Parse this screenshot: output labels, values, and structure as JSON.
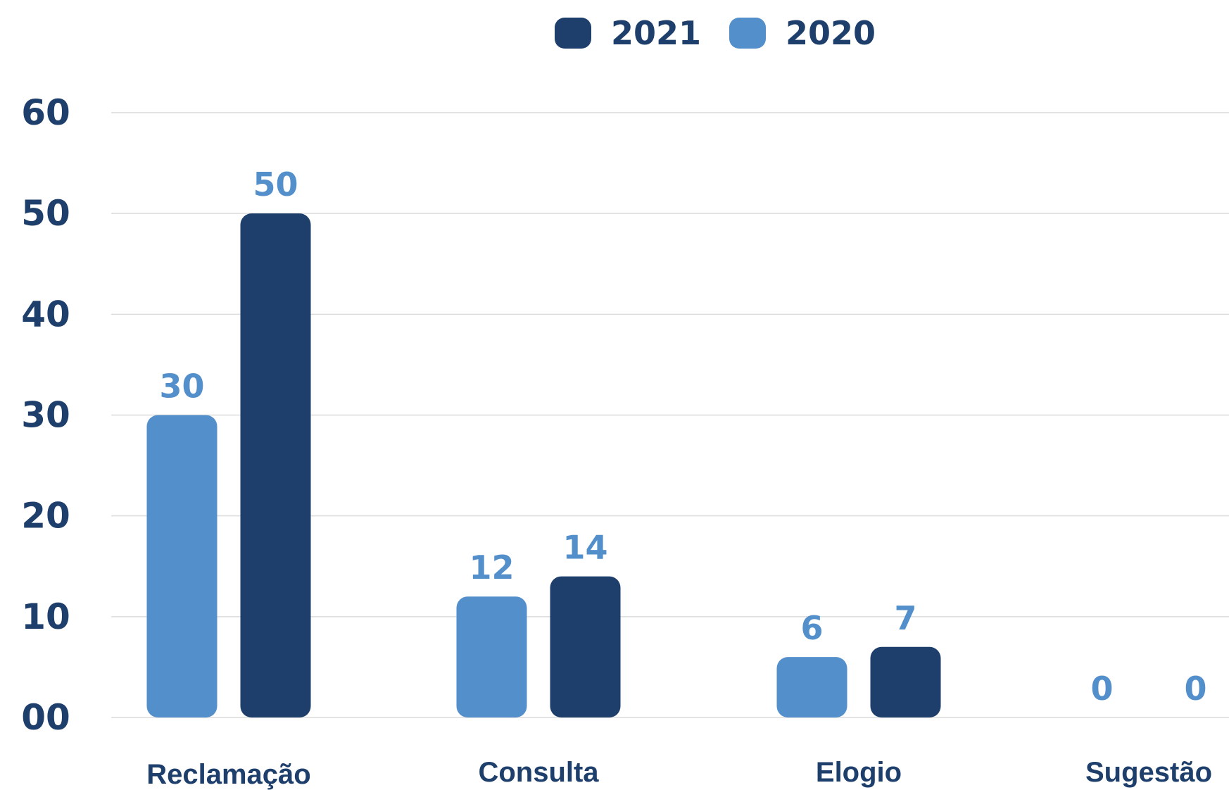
{
  "chart_data": {
    "type": "bar",
    "categories": [
      "Reclamação",
      "Consulta",
      "Elogio",
      "Sugestão"
    ],
    "series": [
      {
        "name": "2020",
        "values": [
          30,
          12,
          6,
          0
        ],
        "color": "#538fcb"
      },
      {
        "name": "2021",
        "values": [
          50,
          14,
          7,
          0
        ],
        "color": "#1e3f6b"
      }
    ],
    "legend_order": [
      "2021",
      "2020"
    ],
    "legend_position": "top-center",
    "yticks": [
      "00",
      "10",
      "20",
      "30",
      "40",
      "50",
      "60"
    ],
    "ylim": [
      0,
      60
    ],
    "grid": true,
    "data_label_color": "#538fcb",
    "title": "",
    "xlabel": "",
    "ylabel": ""
  }
}
